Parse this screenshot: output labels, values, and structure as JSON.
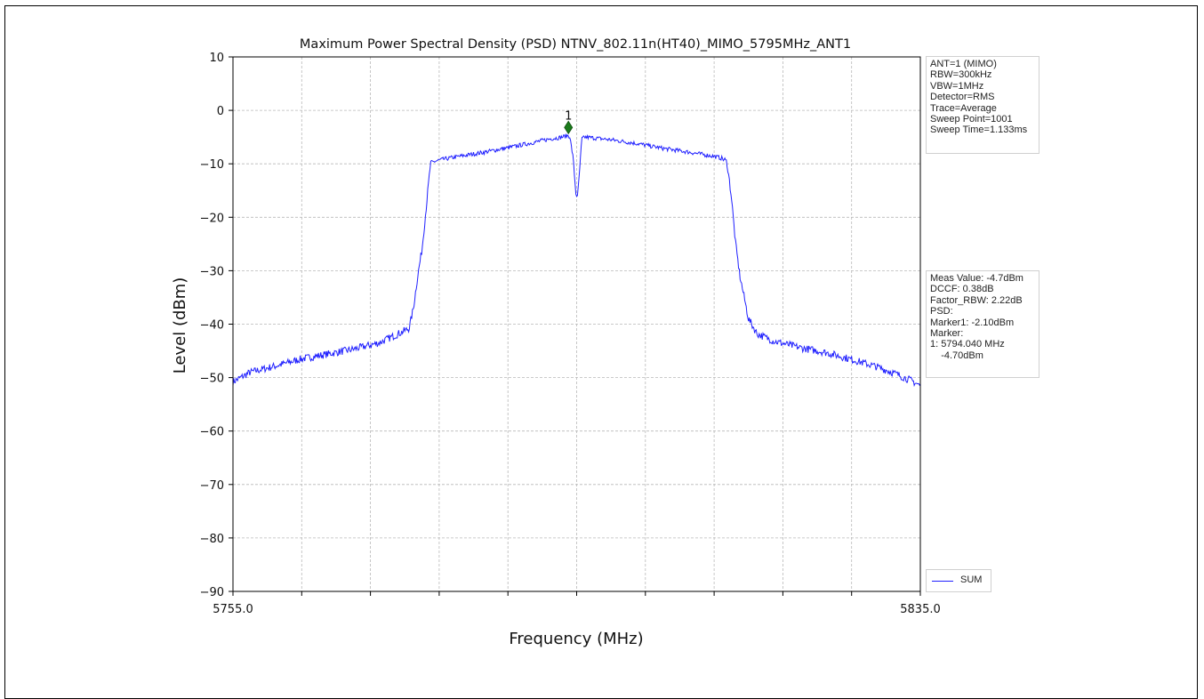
{
  "chart_data": {
    "type": "line",
    "title": "Maximum Power Spectral Density (PSD) NTNV_802.11n(HT40)_MIMO_5795MHz_ANT1",
    "xlabel": "Frequency (MHz)",
    "ylabel": "Level (dBm)",
    "xlim": [
      5755.0,
      5835.0
    ],
    "ylim": [
      -90,
      10
    ],
    "x_tick_labels": [
      "5755.0",
      "5835.0"
    ],
    "x_minor_ticks": [
      5763,
      5771,
      5779,
      5787,
      5795,
      5803,
      5811,
      5819,
      5827
    ],
    "y_ticks": [
      10,
      0,
      -10,
      -20,
      -30,
      -40,
      -50,
      -60,
      -70,
      -80,
      -90
    ],
    "grid": true,
    "legend_position": "bottom-right",
    "series": [
      {
        "name": "SUM",
        "color": "#2020ff",
        "x": [
          5755.0,
          5757.0,
          5760.0,
          5763.0,
          5766.0,
          5769.0,
          5772.0,
          5774.0,
          5775.5,
          5776.0,
          5776.5,
          5777.0,
          5777.5,
          5778.0,
          5779.0,
          5781.0,
          5784.0,
          5787.0,
          5790.0,
          5792.0,
          5793.0,
          5793.5,
          5794.0,
          5794.2,
          5794.6,
          5794.9,
          5795.1,
          5795.4,
          5795.6,
          5796.0,
          5799.0,
          5802.0,
          5805.0,
          5808.0,
          5811.0,
          5812.0,
          5812.5,
          5813.0,
          5813.5,
          5814.0,
          5814.5,
          5815.0,
          5816.0,
          5818.0,
          5821.0,
          5824.0,
          5827.0,
          5830.0,
          5832.0,
          5834.0,
          5835.0
        ],
        "y": [
          -50.8,
          -49.0,
          -47.8,
          -46.5,
          -45.6,
          -44.7,
          -43.5,
          -42.0,
          -40.8,
          -37.0,
          -31.0,
          -26.0,
          -18.0,
          -9.8,
          -9.3,
          -8.7,
          -7.9,
          -7.0,
          -6.0,
          -5.3,
          -5.1,
          -4.9,
          -4.7,
          -4.9,
          -9.0,
          -15.5,
          -16.3,
          -10.0,
          -5.3,
          -5.0,
          -5.5,
          -6.2,
          -7.1,
          -7.8,
          -8.6,
          -9.0,
          -9.8,
          -16.0,
          -25.0,
          -31.0,
          -35.0,
          -39.0,
          -41.8,
          -43.2,
          -44.4,
          -45.3,
          -46.6,
          -48.0,
          -49.2,
          -50.6,
          -51.5
        ]
      }
    ],
    "marker": {
      "label": "1",
      "x": 5794.04,
      "y": -3.2,
      "color": "#1a7a1a"
    }
  },
  "info_box_top": {
    "lines": [
      "ANT=1 (MIMO)",
      "RBW=300kHz",
      "VBW=1MHz",
      "Detector=RMS",
      "Trace=Average",
      "Sweep Point=1001",
      "Sweep Time=1.133ms"
    ]
  },
  "info_box_mid": {
    "lines": [
      "Meas Value: -4.7dBm",
      "DCCF: 0.38dB",
      "Factor_RBW: 2.22dB",
      "PSD:",
      "Marker1: -2.10dBm",
      "Marker:",
      "1: 5794.040 MHz",
      "    -4.70dBm"
    ]
  },
  "legend": {
    "label": "SUM"
  }
}
